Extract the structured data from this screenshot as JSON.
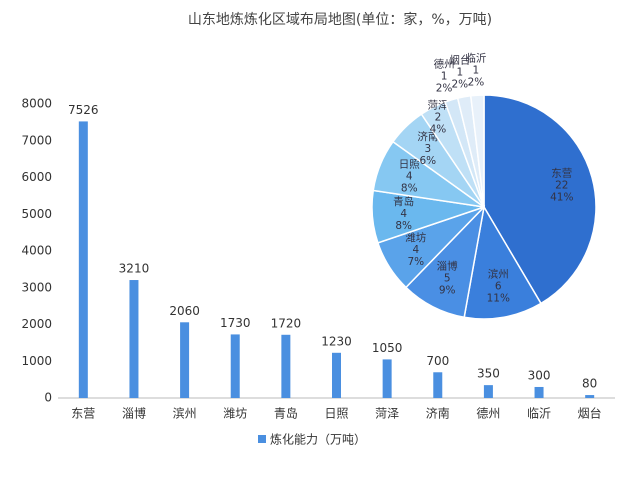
{
  "chart_data": [
    {
      "type": "bar",
      "title": "山东地炼炼化区域布局地图(单位：家，%，万吨)",
      "categories": [
        "东营",
        "淄博",
        "滨州",
        "潍坊",
        "青岛",
        "日照",
        "菏泽",
        "济南",
        "德州",
        "临沂",
        "烟台"
      ],
      "series": [
        {
          "name": "炼化能力（万吨）",
          "color": "#4a8fe0",
          "values": [
            7526,
            3210,
            2060,
            1730,
            1720,
            1230,
            1050,
            700,
            350,
            300,
            80
          ]
        }
      ],
      "ylim": [
        0,
        8000
      ],
      "yticks": [
        0,
        1000,
        2000,
        3000,
        4000,
        5000,
        6000,
        7000,
        8000
      ],
      "grid": false,
      "legend": "bottom"
    },
    {
      "type": "pie",
      "categories": [
        "东营",
        "滨州",
        "淄博",
        "潍坊",
        "青岛",
        "日照",
        "济南",
        "菏泽",
        "德州",
        "烟台",
        "临沂"
      ],
      "values": [
        22,
        6,
        5,
        4,
        4,
        4,
        3,
        2,
        1,
        1,
        1
      ],
      "percent_labels": [
        "41%",
        "11%",
        "9%",
        "7%",
        "8%",
        "8%",
        "6%",
        "4%",
        "2%",
        "2%",
        "2%"
      ],
      "colors": [
        "#2f6fcf",
        "#3a7fdc",
        "#4a8fe4",
        "#5aa3ea",
        "#6ab8ee",
        "#86c8f2",
        "#a4d5f4",
        "#bfe0f6",
        "#d3e7f7",
        "#dfecf8",
        "#e8f1fa"
      ]
    }
  ]
}
